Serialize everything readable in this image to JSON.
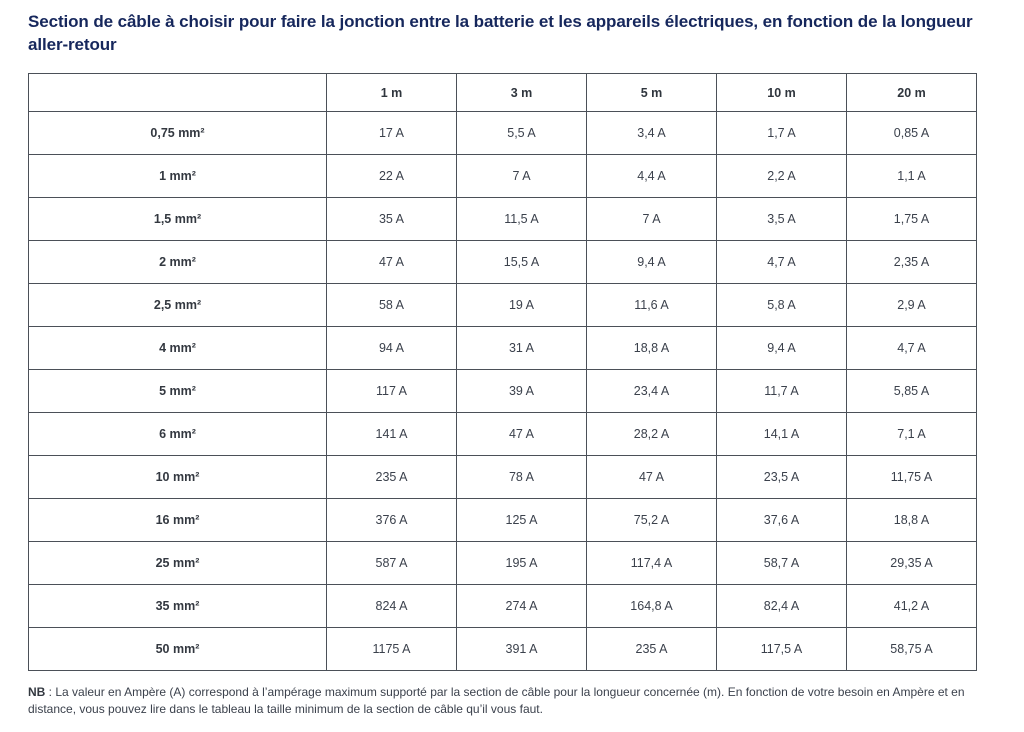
{
  "title": "Section de câble à choisir pour faire la jonction entre la batterie et les appareils électriques, en fonction de la longueur aller-retour",
  "table": {
    "columns": [
      "",
      "1 m",
      "3 m",
      "5 m",
      "10 m",
      "20 m"
    ],
    "rows": [
      {
        "section": "0,75 mm²",
        "values": [
          "17 A",
          "5,5 A",
          "3,4 A",
          "1,7 A",
          "0,85 A"
        ]
      },
      {
        "section": "1 mm²",
        "values": [
          "22 A",
          "7 A",
          "4,4 A",
          "2,2 A",
          "1,1 A"
        ]
      },
      {
        "section": "1,5 mm²",
        "values": [
          "35 A",
          "11,5 A",
          "7 A",
          "3,5 A",
          "1,75 A"
        ]
      },
      {
        "section": "2 mm²",
        "values": [
          "47 A",
          "15,5 A",
          "9,4 A",
          "4,7 A",
          "2,35 A"
        ]
      },
      {
        "section": "2,5 mm²",
        "values": [
          "58 A",
          "19 A",
          "11,6 A",
          "5,8 A",
          "2,9 A"
        ]
      },
      {
        "section": "4 mm²",
        "values": [
          "94 A",
          "31 A",
          "18,8 A",
          "9,4 A",
          "4,7 A"
        ]
      },
      {
        "section": "5 mm²",
        "values": [
          "117 A",
          "39 A",
          "23,4 A",
          "11,7 A",
          "5,85 A"
        ]
      },
      {
        "section": "6 mm²",
        "values": [
          "141 A",
          "47 A",
          "28,2 A",
          "14,1 A",
          "7,1 A"
        ]
      },
      {
        "section": "10 mm²",
        "values": [
          "235 A",
          "78 A",
          "47 A",
          "23,5 A",
          "11,75 A"
        ]
      },
      {
        "section": "16 mm²",
        "values": [
          "376 A",
          "125 A",
          "75,2 A",
          "37,6 A",
          "18,8 A"
        ]
      },
      {
        "section": "25 mm²",
        "values": [
          "587 A",
          "195 A",
          "117,4 A",
          "58,7 A",
          "29,35 A"
        ]
      },
      {
        "section": "35 mm²",
        "values": [
          "824 A",
          "274 A",
          "164,8 A",
          "82,4 A",
          "41,2 A"
        ]
      },
      {
        "section": "50 mm²",
        "values": [
          "1175 A",
          "391 A",
          "235 A",
          "117,5 A",
          "58,75 A"
        ]
      }
    ]
  },
  "note": {
    "label": "NB",
    "text": " : La valeur en Ampère (A) correspond à l’ampérage maximum supporté par la section de câble pour la longueur concernée (m). En fonction de votre besoin en Ampère et en distance, vous pouvez lire dans le tableau la taille minimum de la section de câble qu’il vous faut."
  },
  "colors": {
    "title": "#16275c",
    "border": "#4b5058",
    "text": "#3b414c"
  }
}
